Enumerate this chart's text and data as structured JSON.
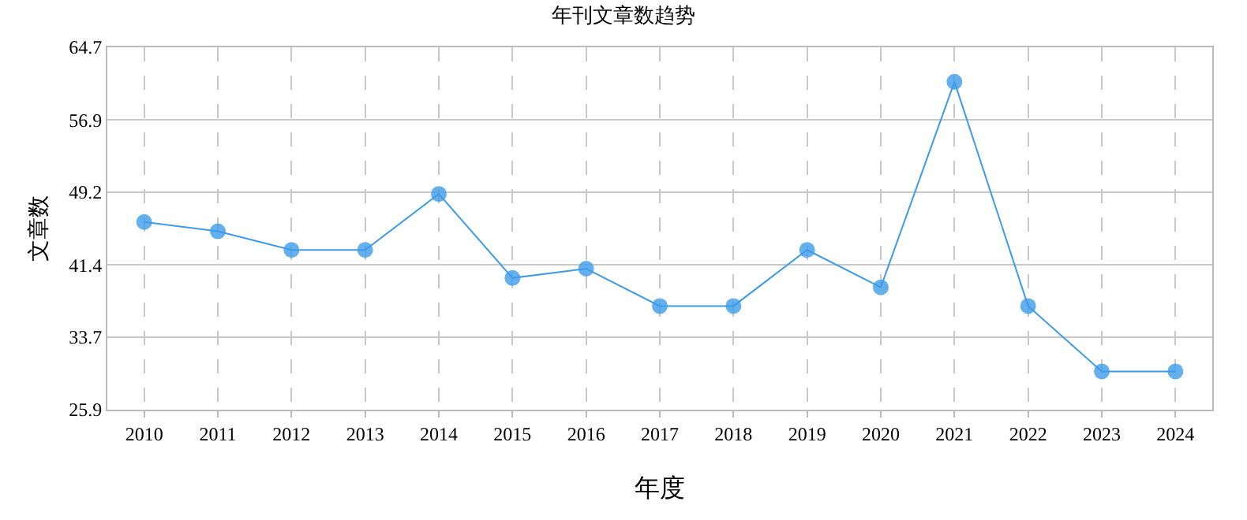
{
  "chart_data": {
    "type": "line",
    "title": "年刊文章数趋势",
    "xlabel": "年度",
    "ylabel": "文章数",
    "categories": [
      "2010",
      "2011",
      "2012",
      "2013",
      "2014",
      "2015",
      "2016",
      "2017",
      "2018",
      "2019",
      "2020",
      "2021",
      "2022",
      "2023",
      "2024"
    ],
    "series": [
      {
        "color": "#3d9be9",
        "values": [
          46,
          45,
          43,
          43,
          49,
          40,
          41,
          37,
          37,
          43,
          39,
          61,
          37,
          30,
          30
        ]
      }
    ],
    "ylim": [
      25.9,
      64.7
    ],
    "yticks": [
      25.9,
      33.7,
      41.4,
      49.2,
      56.9,
      64.7
    ],
    "grid": true,
    "marker": "circle",
    "line_style": "solid"
  }
}
